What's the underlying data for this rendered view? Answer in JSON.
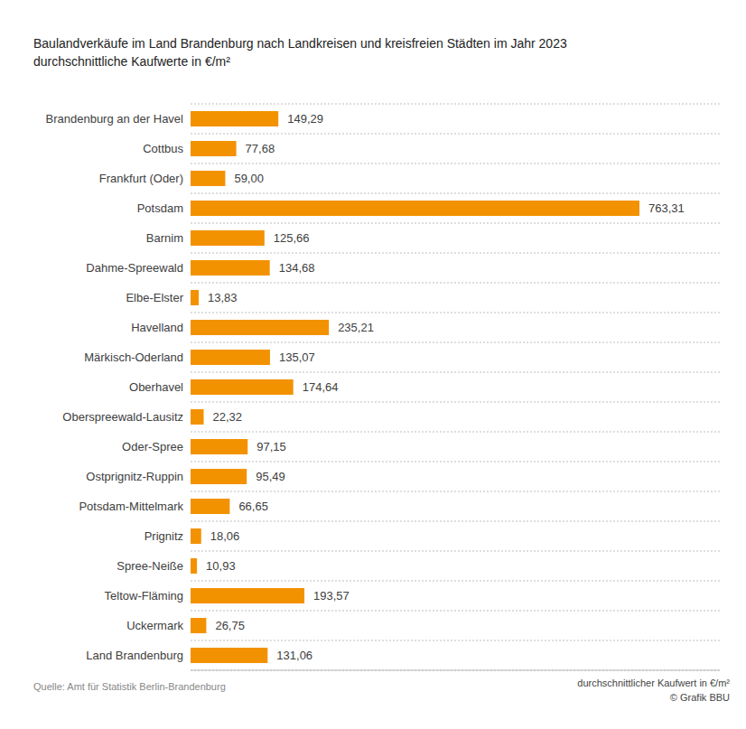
{
  "chart_data": {
    "type": "bar",
    "orientation": "horizontal",
    "title": "Baulandverkäufe im Land Brandenburg nach Landkreisen und kreisfreien Städten im Jahr 2023",
    "subtitle": "durchschnittliche Kaufwerte in €/m²",
    "xlabel": "durchschnittlicher Kaufwert in €/m²",
    "annotations": [
      "Quelle: Amt für Statistik Berlin-Brandenburg",
      "© Grafik BBU"
    ],
    "categories": [
      "Brandenburg an der Havel",
      "Cottbus",
      "Frankfurt (Oder)",
      "Potsdam",
      "Barnim",
      "Dahme-Spreewald",
      "Elbe-Elster",
      "Havelland",
      "Märkisch-Oderland",
      "Oberhavel",
      "Oberspreewald-Lausitz",
      "Oder-Spree",
      "Ostprignitz-Ruppin",
      "Potsdam-Mittelmark",
      "Prignitz",
      "Spree-Neiße",
      "Teltow-Fläming",
      "Uckermark",
      "Land Brandenburg"
    ],
    "values": [
      149.29,
      77.68,
      59.0,
      763.31,
      125.66,
      134.68,
      13.83,
      235.21,
      135.07,
      174.64,
      22.32,
      97.15,
      95.49,
      66.65,
      18.06,
      10.93,
      193.57,
      26.75,
      131.06
    ],
    "value_labels": [
      "149,29",
      "77,68",
      "59,00",
      "763,31",
      "125,66",
      "134,68",
      "13,83",
      "235,21",
      "135,07",
      "174,64",
      "22,32",
      "97,15",
      "95,49",
      "66,65",
      "18,06",
      "10,93",
      "193,57",
      "26,75",
      "131,06"
    ],
    "color": "#f39200",
    "xlim": [
      0,
      900
    ],
    "xticks": [],
    "grid": true,
    "data_labels": true,
    "tick_labels": "y"
  }
}
